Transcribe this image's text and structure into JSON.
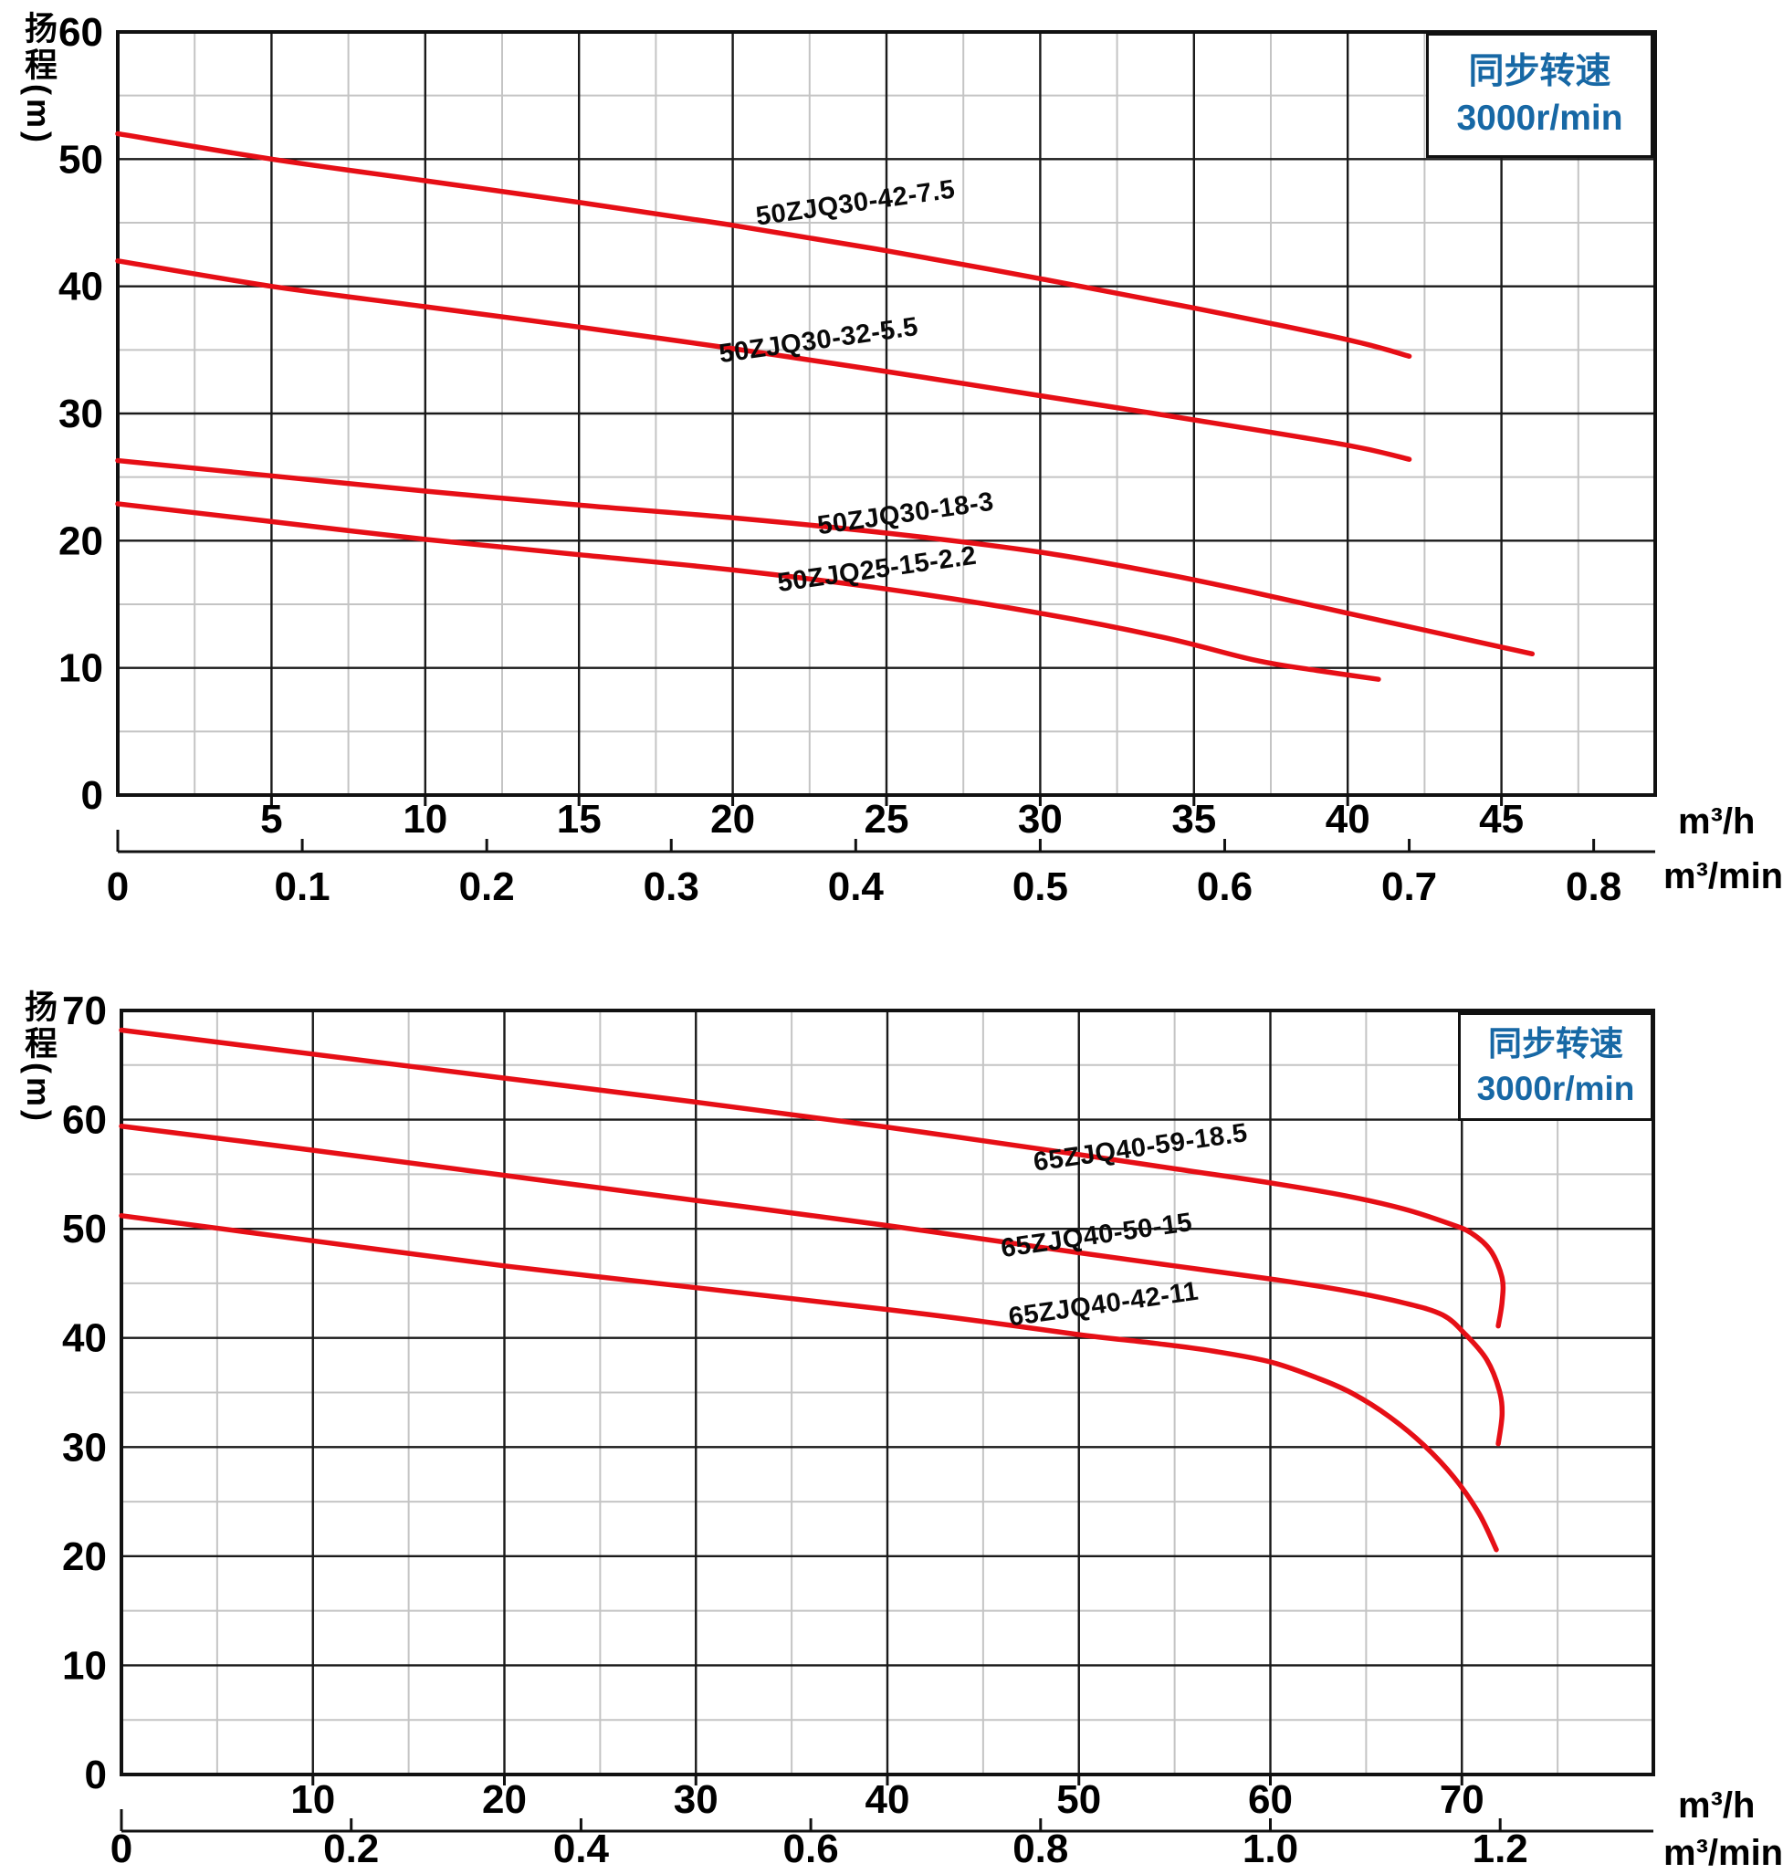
{
  "colors": {
    "curve": "#e60f16",
    "annotation_text": "#1768a5",
    "grid_major": "#1a1a1a",
    "grid_minor": "#c4c4c4",
    "frame": "#111111",
    "text": "#000000"
  },
  "chart_data": [
    {
      "type": "line",
      "y_axis_title": "扬程(m)",
      "annotation": {
        "line1": "同步转速",
        "line2": "3000r/min"
      },
      "x_axis_primary": {
        "unit": "m³/h",
        "min": 0,
        "max": 50,
        "major_step": 5,
        "minor_step": 2.5,
        "tick_labels": [
          "5",
          "10",
          "15",
          "20",
          "25",
          "30",
          "35",
          "40",
          "45"
        ]
      },
      "x_axis_secondary": {
        "unit": "m³/min",
        "to_primary_factor": 60,
        "tick_labels": [
          "0",
          "0.1",
          "0.2",
          "0.3",
          "0.4",
          "0.5",
          "0.6",
          "0.7",
          "0.8"
        ]
      },
      "y_axis": {
        "min": 0,
        "max": 60,
        "major_step": 10,
        "minor_step": 5,
        "tick_labels": [
          "0",
          "10",
          "20",
          "30",
          "40",
          "50",
          "60"
        ]
      },
      "series": [
        {
          "name": "50ZJQ30-42-7.5",
          "label_anchor": [
            20.8,
            44.8
          ],
          "label_angle": -8,
          "points": [
            [
              0,
              52
            ],
            [
              5,
              50.0
            ],
            [
              10,
              48.3
            ],
            [
              15,
              46.6
            ],
            [
              20,
              44.8
            ],
            [
              25,
              42.8
            ],
            [
              30,
              40.6
            ],
            [
              35,
              38.3
            ],
            [
              40,
              35.8
            ],
            [
              42,
              34.5
            ]
          ]
        },
        {
          "name": "50ZJQ30-32-5.5",
          "label_anchor": [
            19.6,
            34.0
          ],
          "label_angle": -8,
          "points": [
            [
              0,
              42
            ],
            [
              5,
              40.0
            ],
            [
              10,
              38.4
            ],
            [
              15,
              36.8
            ],
            [
              20,
              35.1
            ],
            [
              25,
              33.3
            ],
            [
              30,
              31.4
            ],
            [
              35,
              29.5
            ],
            [
              40,
              27.5
            ],
            [
              42,
              26.4
            ]
          ]
        },
        {
          "name": "50ZJQ30-18-3",
          "label_anchor": [
            22.8,
            20.5
          ],
          "label_angle": -8,
          "points": [
            [
              0,
              26.3
            ],
            [
              5,
              25.1
            ],
            [
              10,
              23.9
            ],
            [
              15,
              22.8
            ],
            [
              20,
              21.8
            ],
            [
              25,
              20.6
            ],
            [
              30,
              19.1
            ],
            [
              34,
              17.4
            ],
            [
              37,
              15.9
            ],
            [
              40,
              14.3
            ],
            [
              43,
              12.7
            ],
            [
              46,
              11.1
            ]
          ]
        },
        {
          "name": "50ZJQ25-15-2.2",
          "label_anchor": [
            21.5,
            16.0
          ],
          "label_angle": -8,
          "points": [
            [
              0,
              22.9
            ],
            [
              5,
              21.5
            ],
            [
              10,
              20.1
            ],
            [
              15,
              18.9
            ],
            [
              20,
              17.7
            ],
            [
              25,
              16.2
            ],
            [
              30,
              14.3
            ],
            [
              34,
              12.4
            ],
            [
              37,
              10.6
            ],
            [
              39,
              9.8
            ],
            [
              41,
              9.1
            ]
          ]
        }
      ]
    },
    {
      "type": "line",
      "y_axis_title": "扬程(m)",
      "annotation": {
        "line1": "同步转速",
        "line2": "3000r/min"
      },
      "x_axis_primary": {
        "unit": "m³/h",
        "min": 0,
        "max": 80,
        "major_step": 10,
        "minor_step": 5,
        "tick_labels": [
          "10",
          "20",
          "30",
          "40",
          "50",
          "60",
          "70"
        ]
      },
      "x_axis_secondary": {
        "unit": "m³/min",
        "to_primary_factor": 60,
        "tick_labels": [
          "0",
          "0.2",
          "0.4",
          "0.6",
          "0.8",
          "1.0",
          "1.2"
        ]
      },
      "y_axis": {
        "min": 0,
        "max": 70,
        "major_step": 10,
        "minor_step": 5,
        "tick_labels": [
          "0",
          "10",
          "20",
          "30",
          "40",
          "50",
          "60",
          "70"
        ]
      },
      "series": [
        {
          "name": "65ZJQ40-59-18.5",
          "label_anchor": [
            47.7,
            55.3
          ],
          "label_angle": -8,
          "points": [
            [
              0,
              68.2
            ],
            [
              10,
              66.0
            ],
            [
              20,
              63.8
            ],
            [
              30,
              61.6
            ],
            [
              40,
              59.3
            ],
            [
              50,
              56.8
            ],
            [
              55,
              55.5
            ],
            [
              60,
              54.2
            ],
            [
              64,
              53.0
            ],
            [
              67,
              51.8
            ],
            [
              69.3,
              50.5
            ],
            [
              70.5,
              49.6
            ],
            [
              71.5,
              48.0
            ],
            [
              72.1,
              45.5
            ],
            [
              72.1,
              43.3
            ],
            [
              71.9,
              41.1
            ]
          ]
        },
        {
          "name": "65ZJQ40-50-15",
          "label_anchor": [
            46.0,
            47.4
          ],
          "label_angle": -8,
          "points": [
            [
              0,
              59.4
            ],
            [
              10,
              57.2
            ],
            [
              20,
              54.9
            ],
            [
              30,
              52.6
            ],
            [
              40,
              50.3
            ],
            [
              50,
              47.8
            ],
            [
              55,
              46.6
            ],
            [
              60,
              45.4
            ],
            [
              64,
              44.3
            ],
            [
              67,
              43.2
            ],
            [
              69,
              42.1
            ],
            [
              70.2,
              40.3
            ],
            [
              71.3,
              38.0
            ],
            [
              71.95,
              35.2
            ],
            [
              72.1,
              33.0
            ],
            [
              71.9,
              30.3
            ]
          ]
        },
        {
          "name": "65ZJQ40-42-11",
          "label_anchor": [
            46.4,
            41.1
          ],
          "label_angle": -8,
          "points": [
            [
              0,
              51.2
            ],
            [
              10,
              48.9
            ],
            [
              20,
              46.6
            ],
            [
              30,
              44.6
            ],
            [
              40,
              42.6
            ],
            [
              45,
              41.5
            ],
            [
              50,
              40.3
            ],
            [
              54,
              39.5
            ],
            [
              57,
              38.8
            ],
            [
              60,
              37.8
            ],
            [
              62.5,
              36.3
            ],
            [
              64.3,
              34.9
            ],
            [
              66.2,
              32.8
            ],
            [
              68,
              30.2
            ],
            [
              69.6,
              27.2
            ],
            [
              70.9,
              23.9
            ],
            [
              71.8,
              20.6
            ]
          ]
        }
      ]
    }
  ]
}
